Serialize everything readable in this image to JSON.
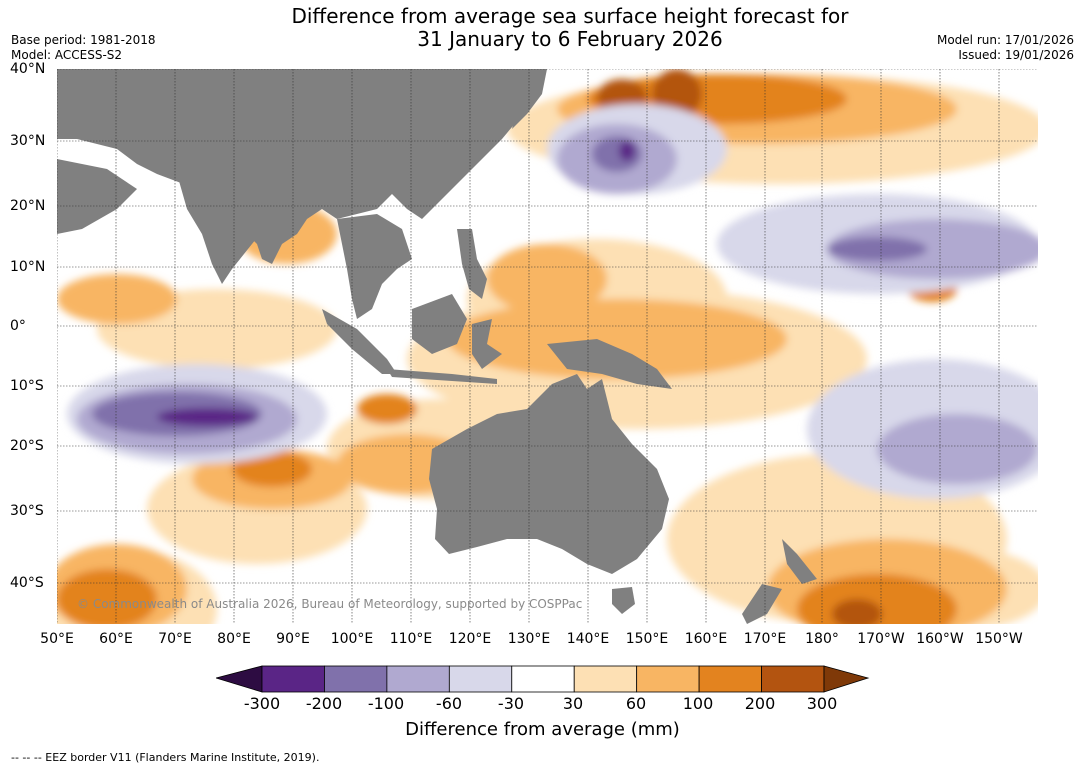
{
  "header": {
    "title_line1": "Difference from average sea surface height forecast for",
    "title_line2": "31 January to 6 February 2026",
    "base_period": "Base period: 1981-2018",
    "model": "Model: ACCESS-S2",
    "model_run": "Model run: 17/01/2026",
    "issued": "Issued: 19/01/2026"
  },
  "map": {
    "lat_labels": [
      "40°N",
      "30°N",
      "20°N",
      "10°N",
      "0°",
      "10°S",
      "20°S",
      "30°S",
      "40°S"
    ],
    "lon_labels": [
      "50°E",
      "60°E",
      "70°E",
      "80°E",
      "90°E",
      "100°E",
      "110°E",
      "120°E",
      "130°E",
      "140°E",
      "150°E",
      "160°E",
      "170°E",
      "180°",
      "170°W",
      "160°W",
      "150°W"
    ],
    "copyright": "© Commonwealth of Australia 2026, Bureau of Meteorology, supported by COSPPac",
    "colors": {
      "land": "#808080",
      "grid": "#333333",
      "below_m300": "#2d0c42",
      "m300_m200": "#5a2586",
      "m200_m100": "#8071ab",
      "m100_m60": "#b0a9d0",
      "m60_m30": "#d8d8ea",
      "m30_30": "#ffffff",
      "p30_60": "#fde0b4",
      "p60_100": "#f8b563",
      "p100_200": "#e3831f",
      "p200_300": "#b35410",
      "above_300": "#7f3908"
    }
  },
  "colorbar": {
    "ticks": [
      "-300",
      "-200",
      "-100",
      "-60",
      "-30",
      "30",
      "60",
      "100",
      "200",
      "300"
    ],
    "colors": [
      "#5a2586",
      "#8071ab",
      "#b0a9d0",
      "#d8d8ea",
      "#ffffff",
      "#fde0b4",
      "#f8b563",
      "#e3831f",
      "#b35410"
    ],
    "low_color": "#2d0c42",
    "high_color": "#7f3908",
    "title": "Difference from average (mm)"
  },
  "footer": {
    "eez": "--  --  -- EEZ border V11 (Flanders Marine Institute, 2019)."
  }
}
